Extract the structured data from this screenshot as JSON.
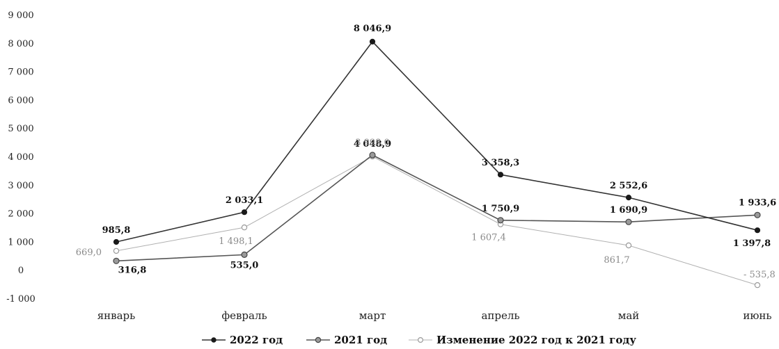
{
  "chart_data": {
    "type": "line",
    "title": "",
    "xlabel": "",
    "ylabel": "",
    "categories": [
      "январь",
      "февраль",
      "март",
      "апрель",
      "май",
      "июнь"
    ],
    "ylim": [
      -1000,
      9000
    ],
    "yticks": [
      "9 000",
      "8 000",
      "7 000",
      "6 000",
      "5 000",
      "4 000",
      "3 000",
      "2 000",
      "1 000",
      "0",
      "-1 000"
    ],
    "ytick_values": [
      9000,
      8000,
      7000,
      6000,
      5000,
      4000,
      3000,
      2000,
      1000,
      0,
      -1000
    ],
    "grid": false,
    "legend_position": "bottom",
    "series": [
      {
        "name": "2022 год",
        "color": "#333333",
        "marker": "filled-circle",
        "values": [
          985.8,
          2033.1,
          8046.9,
          3358.3,
          2552.6,
          1397.8
        ],
        "labels": [
          "985,8",
          "2 033,1",
          "8 046,9",
          "3 358,3",
          "2 552,6",
          "1 397,8"
        ]
      },
      {
        "name": "2021 год",
        "color": "#555555",
        "marker": "grey-circle",
        "values": [
          316.8,
          535.0,
          4048.9,
          1750.9,
          1690.9,
          1933.6
        ],
        "labels": [
          "316,8",
          "535,0",
          "4 048,9",
          "1 750,9",
          "1 690,9",
          "1 933,6"
        ]
      },
      {
        "name": "Изменение 2022 год к 2021 году",
        "color": "#b0b0b0",
        "marker": "open-circle",
        "values": [
          669.0,
          1498.1,
          3998.0,
          1607.4,
          861.7,
          -535.8
        ],
        "labels": [
          "669,0",
          "1 498,1",
          "3 998,0",
          "1 607,4",
          "861,7",
          "- 535,8"
        ]
      }
    ]
  }
}
